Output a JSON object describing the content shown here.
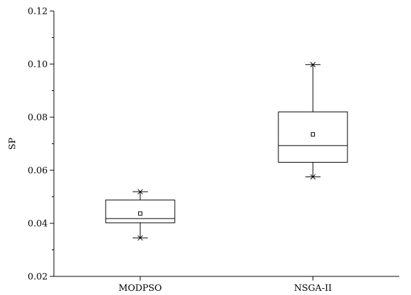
{
  "chart_data": {
    "type": "box",
    "title": "",
    "xlabel": "",
    "ylabel": "SP",
    "ylim": [
      0.02,
      0.12
    ],
    "y_ticks": [
      "0.02",
      "0.04",
      "0.06",
      "0.08",
      "0.10",
      "0.12"
    ],
    "categories": [
      "MODPSO",
      "NSGA-II"
    ],
    "boxes": [
      {
        "name": "MODPSO",
        "whisker_low": 0.0345,
        "q1": 0.0402,
        "median": 0.0418,
        "mean": 0.0437,
        "q3": 0.0488,
        "whisker_high": 0.0519,
        "min": 0.0345,
        "max": 0.0519
      },
      {
        "name": "NSGA-II",
        "whisker_low": 0.0575,
        "q1": 0.063,
        "median": 0.0693,
        "mean": 0.0735,
        "q3": 0.082,
        "whisker_high": 0.0998,
        "min": 0.0575,
        "max": 0.0998
      }
    ],
    "grid": false,
    "colors": {
      "stroke": "#000000",
      "background": "#ffffff"
    }
  }
}
